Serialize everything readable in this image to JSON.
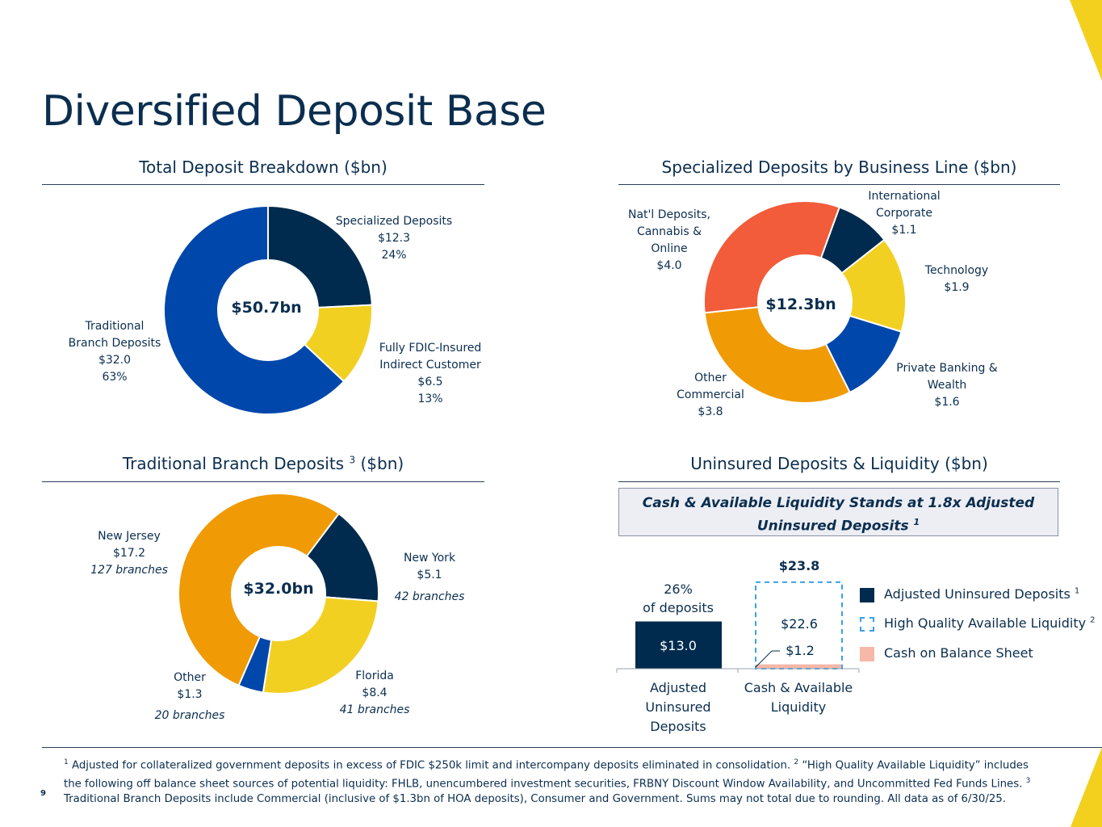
{
  "title": "Diversified Deposit Base",
  "page_number": "9",
  "colors": {
    "navy": "#002b4e",
    "royal": "#0047ab",
    "yellow": "#f2d022",
    "orange": "#f09a05",
    "red": "#f25c3a",
    "pink": "#f6b8a8",
    "dash_blue": "#3aa0e6",
    "gold_accent": "#f4d01e"
  },
  "chart_data": [
    {
      "type": "pie",
      "title": "Total Deposit Breakdown ($bn)",
      "center_label": "$50.7bn",
      "slices": [
        {
          "name": "Specialized Deposits",
          "value": 12.3,
          "value_label": "$12.3",
          "percent": "24%",
          "color": "#002b4e"
        },
        {
          "name": "Fully FDIC-Insured Indirect Customer",
          "value": 6.5,
          "value_label": "$6.5",
          "percent": "13%",
          "color": "#f2d022"
        },
        {
          "name": "Traditional Branch Deposits",
          "value": 32.0,
          "value_label": "$32.0",
          "percent": "63%",
          "color": "#0047ab"
        }
      ],
      "labels": {
        "specialized": [
          "Specialized Deposits",
          "$12.3",
          "24%"
        ],
        "fdic": [
          "Fully FDIC-Insured",
          "Indirect Customer",
          "$6.5",
          "13%"
        ],
        "traditional": [
          "Traditional",
          "Branch Deposits",
          "$32.0",
          "63%"
        ]
      }
    },
    {
      "type": "pie",
      "title": "Specialized Deposits by Business Line ($bn)",
      "center_label": "$12.3bn",
      "slices": [
        {
          "name": "International Corporate",
          "value": 1.1,
          "color": "#002b4e"
        },
        {
          "name": "Technology",
          "value": 1.9,
          "color": "#f2d022"
        },
        {
          "name": "Private Banking & Wealth",
          "value": 1.6,
          "color": "#0047ab"
        },
        {
          "name": "Other Commercial",
          "value": 3.8,
          "color": "#f09a05"
        },
        {
          "name": "Nat'l Deposits, Cannabis & Online",
          "value": 4.0,
          "color": "#f25c3a"
        }
      ],
      "labels": {
        "intl": [
          "International",
          "Corporate",
          "$1.1"
        ],
        "tech": [
          "Technology",
          "$1.9"
        ],
        "private": [
          "Private Banking &",
          "Wealth",
          "$1.6"
        ],
        "other": [
          "Other",
          "Commercial",
          "$3.8"
        ],
        "natl": [
          "Nat'l Deposits,",
          "Cannabis &",
          "Online",
          "$4.0"
        ]
      }
    },
    {
      "type": "pie",
      "title": "Traditional Branch Deposits",
      "title_superscript": "3",
      "title_suffix": "($bn)",
      "center_label": "$32.0bn",
      "slices": [
        {
          "name": "New York",
          "value": 5.1,
          "color": "#002b4e"
        },
        {
          "name": "Florida",
          "value": 8.4,
          "color": "#f2d022"
        },
        {
          "name": "Other",
          "value": 1.3,
          "color": "#0047ab"
        },
        {
          "name": "New Jersey",
          "value": 17.2,
          "color": "#f09a05"
        }
      ],
      "labels": {
        "ny": [
          "New York",
          "$5.1",
          "42 branches"
        ],
        "fl": [
          "Florida",
          "$8.4",
          "41 branches"
        ],
        "other": [
          "Other",
          "$1.3",
          "20 branches"
        ],
        "nj": [
          "New Jersey",
          "$17.2",
          "127 branches"
        ]
      }
    },
    {
      "type": "bar",
      "title": "Uninsured Deposits & Liquidity ($bn)",
      "callout_line1": "Cash & Available Liquidity Stands at 1.8x Adjusted",
      "callout_line2": "Uninsured Deposits",
      "callout_sup": "1",
      "categories": [
        "Adjusted Uninsured Deposits",
        "Cash & Available Liquidity"
      ],
      "category_lines": [
        [
          "Adjusted",
          "Uninsured",
          "Deposits"
        ],
        [
          "Cash & Available",
          "Liquidity"
        ]
      ],
      "series": [
        {
          "name": "Adjusted Uninsured Deposits",
          "sup": "1",
          "values": [
            13.0,
            0
          ],
          "labels": [
            "$13.0",
            ""
          ]
        },
        {
          "name": "Cash on Balance Sheet",
          "values": [
            0,
            1.2
          ],
          "labels": [
            "",
            "$1.2"
          ]
        },
        {
          "name": "High Quality Available Liquidity",
          "sup": "2",
          "values": [
            0,
            22.6
          ],
          "labels": [
            "",
            "$22.6"
          ]
        }
      ],
      "total_label": "$23.8",
      "annotation_line1": "26%",
      "annotation_line2": "of deposits",
      "ylim": [
        0,
        24
      ]
    }
  ],
  "footnote": {
    "sup1": "1",
    "line1": "Adjusted for collateralized government deposits in excess of FDIC $250k limit and intercompany deposits eliminated in consolidation.",
    "sup2": "2",
    "line1b": "“High Quality Available Liquidity”",
    "line2": "includes the following off balance sheet sources of potential liquidity: FHLB, unencumbered investment securities, FRBNY Discount Window Availability, and Uncommitted",
    "line3": "Fed Funds Lines.",
    "sup3": "3",
    "line3b": "Traditional Branch Deposits include Commercial (inclusive of $1.3bn of HOA deposits), Consumer and Government. Sums may not total due to rounding.",
    "line4": "All data as of 6/30/25."
  }
}
